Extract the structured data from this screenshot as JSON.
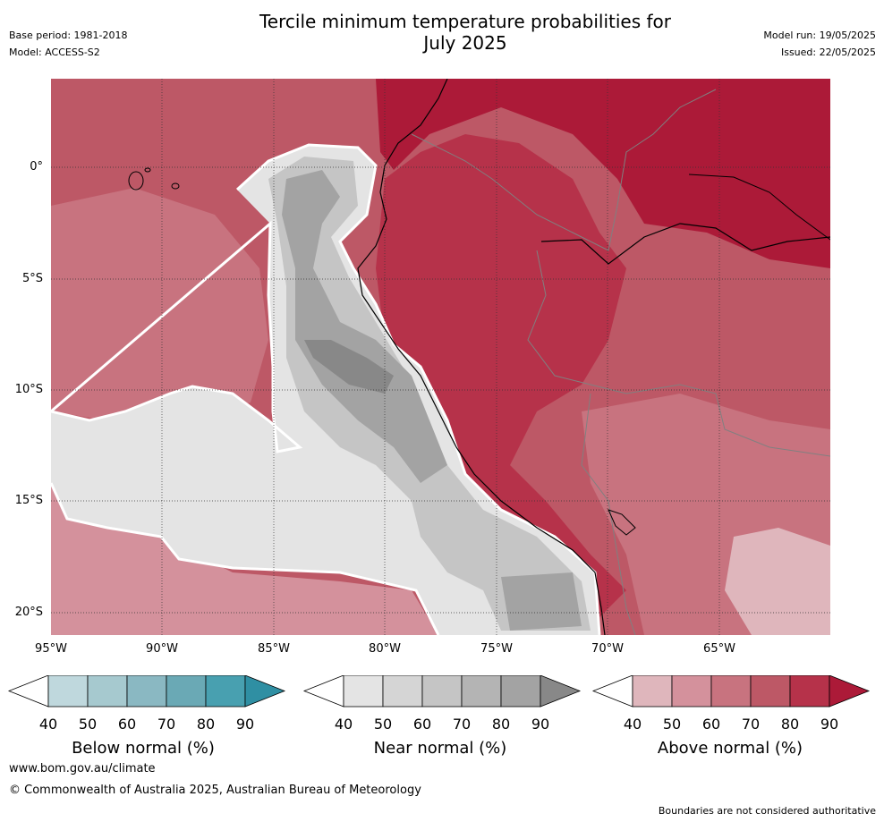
{
  "header": {
    "title_line1": "Tercile minimum temperature probabilities for",
    "title_line2": "July 2025",
    "base_period": "Base period: 1981-2018",
    "model": "Model: ACCESS-S2",
    "model_run": "Model run: 19/05/2025",
    "issued": "Issued: 22/05/2025"
  },
  "map": {
    "lat_labels": [
      "0°",
      "5°S",
      "10°S",
      "15°S",
      "20°S"
    ],
    "lon_labels": [
      "95°W",
      "90°W",
      "85°W",
      "80°W",
      "75°W",
      "70°W",
      "65°W"
    ],
    "colors": {
      "above": [
        "#dfb6bc",
        "#d4919c",
        "#c8737f",
        "#bd5866",
        "#b6324a",
        "#ac1a38"
      ],
      "near": [
        "#e4e4e4",
        "#d5d5d5",
        "#c5c5c5",
        "#b4b4b4",
        "#a3a3a3",
        "#888888"
      ],
      "below": [
        "#bfd8dd",
        "#a6c9cf",
        "#8ab8c2",
        "#6aa9b5",
        "#48a0b0",
        "#2f8fa3"
      ]
    }
  },
  "colorbars": [
    {
      "id": "below",
      "title": "Below normal (%)",
      "ticks": [
        "40",
        "50",
        "60",
        "70",
        "80",
        "90"
      ]
    },
    {
      "id": "near",
      "title": "Near normal (%)",
      "ticks": [
        "40",
        "50",
        "60",
        "70",
        "80",
        "90"
      ]
    },
    {
      "id": "above",
      "title": "Above normal (%)",
      "ticks": [
        "40",
        "50",
        "60",
        "70",
        "80",
        "90"
      ]
    }
  ],
  "footer": {
    "url": "www.bom.gov.au/climate",
    "copyright": "© Commonwealth of Australia 2025, Australian Bureau of Meteorology",
    "disclaimer": "Boundaries are not considered authoritative"
  }
}
